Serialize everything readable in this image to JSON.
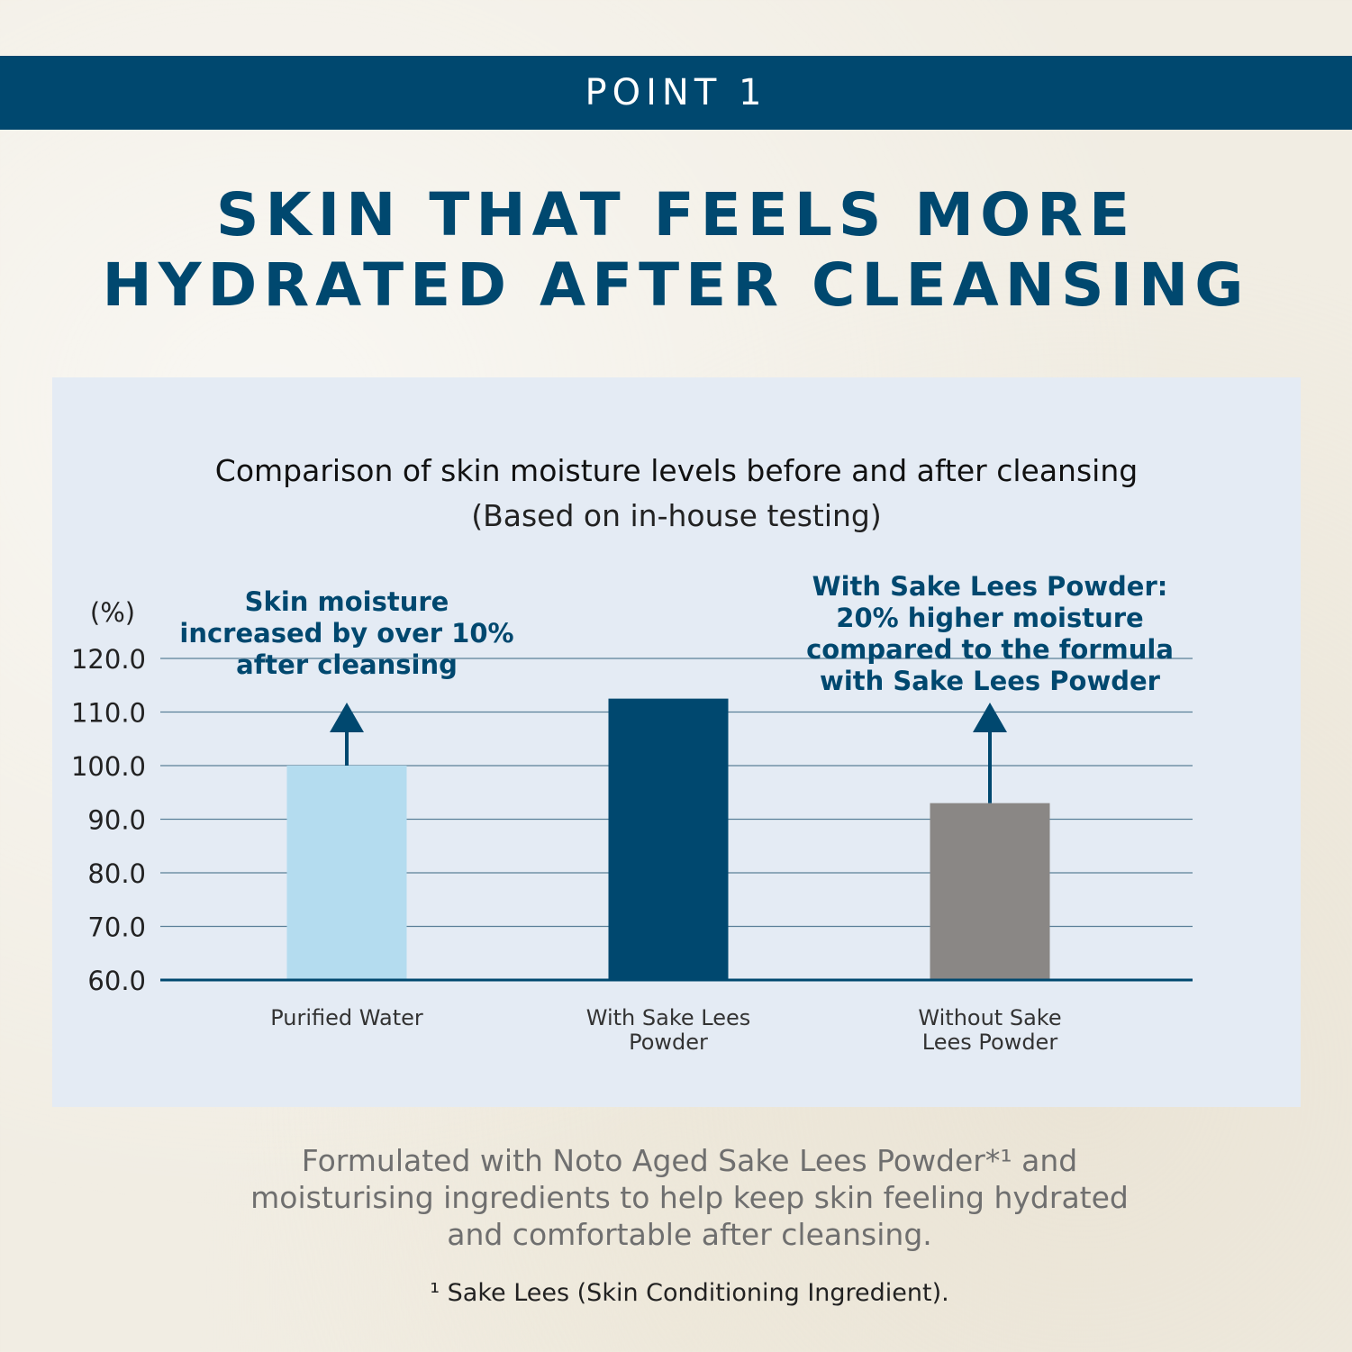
{
  "banner": {
    "label": "POINT 1"
  },
  "headline": {
    "line1": "SKIN THAT FEELS MORE",
    "line2": "HYDRATED AFTER CLEANSING"
  },
  "description": {
    "line1": "Formulated with Noto Aged Sake Lees Powder*¹ and",
    "line2": "moisturising ingredients to help keep skin feeling hydrated",
    "line3": "and comfortable after cleansing."
  },
  "footnote": "¹ Sake Lees (Skin Conditioning Ingredient).",
  "colors": {
    "brand": "#00486f",
    "purified_water_bar": "#b4dcef",
    "with_sake_lees_bar": "#00486f",
    "without_sake_lees_bar": "#8a8785",
    "panel": "#e4ebf4"
  },
  "chart_data": {
    "type": "bar",
    "title": "Comparison of skin moisture levels before and after cleansing",
    "subtitle": "(Based on in-house testing)",
    "ylabel": "(%)",
    "ylim": [
      60,
      120
    ],
    "yticks": [
      "120.0",
      "110.0",
      "100.0",
      "90.0",
      "80.0",
      "70.0",
      "60.0"
    ],
    "grid": true,
    "categories": [
      [
        "Purified Water"
      ],
      [
        "With Sake Lees",
        "Powder"
      ],
      [
        "Without Sake",
        "Lees Powder"
      ]
    ],
    "values": [
      100.0,
      112.5,
      93.0
    ],
    "annotations": [
      {
        "lines": [
          "Skin moisture",
          "increased by over 10%",
          "after cleansing"
        ],
        "arrow_over": "Purified Water"
      },
      {
        "lines": [
          "With Sake Lees Powder:",
          "20% higher moisture",
          "compared to the formula",
          "with Sake Lees Powder"
        ],
        "arrow_over": "Without Sake Lees Powder"
      }
    ]
  }
}
